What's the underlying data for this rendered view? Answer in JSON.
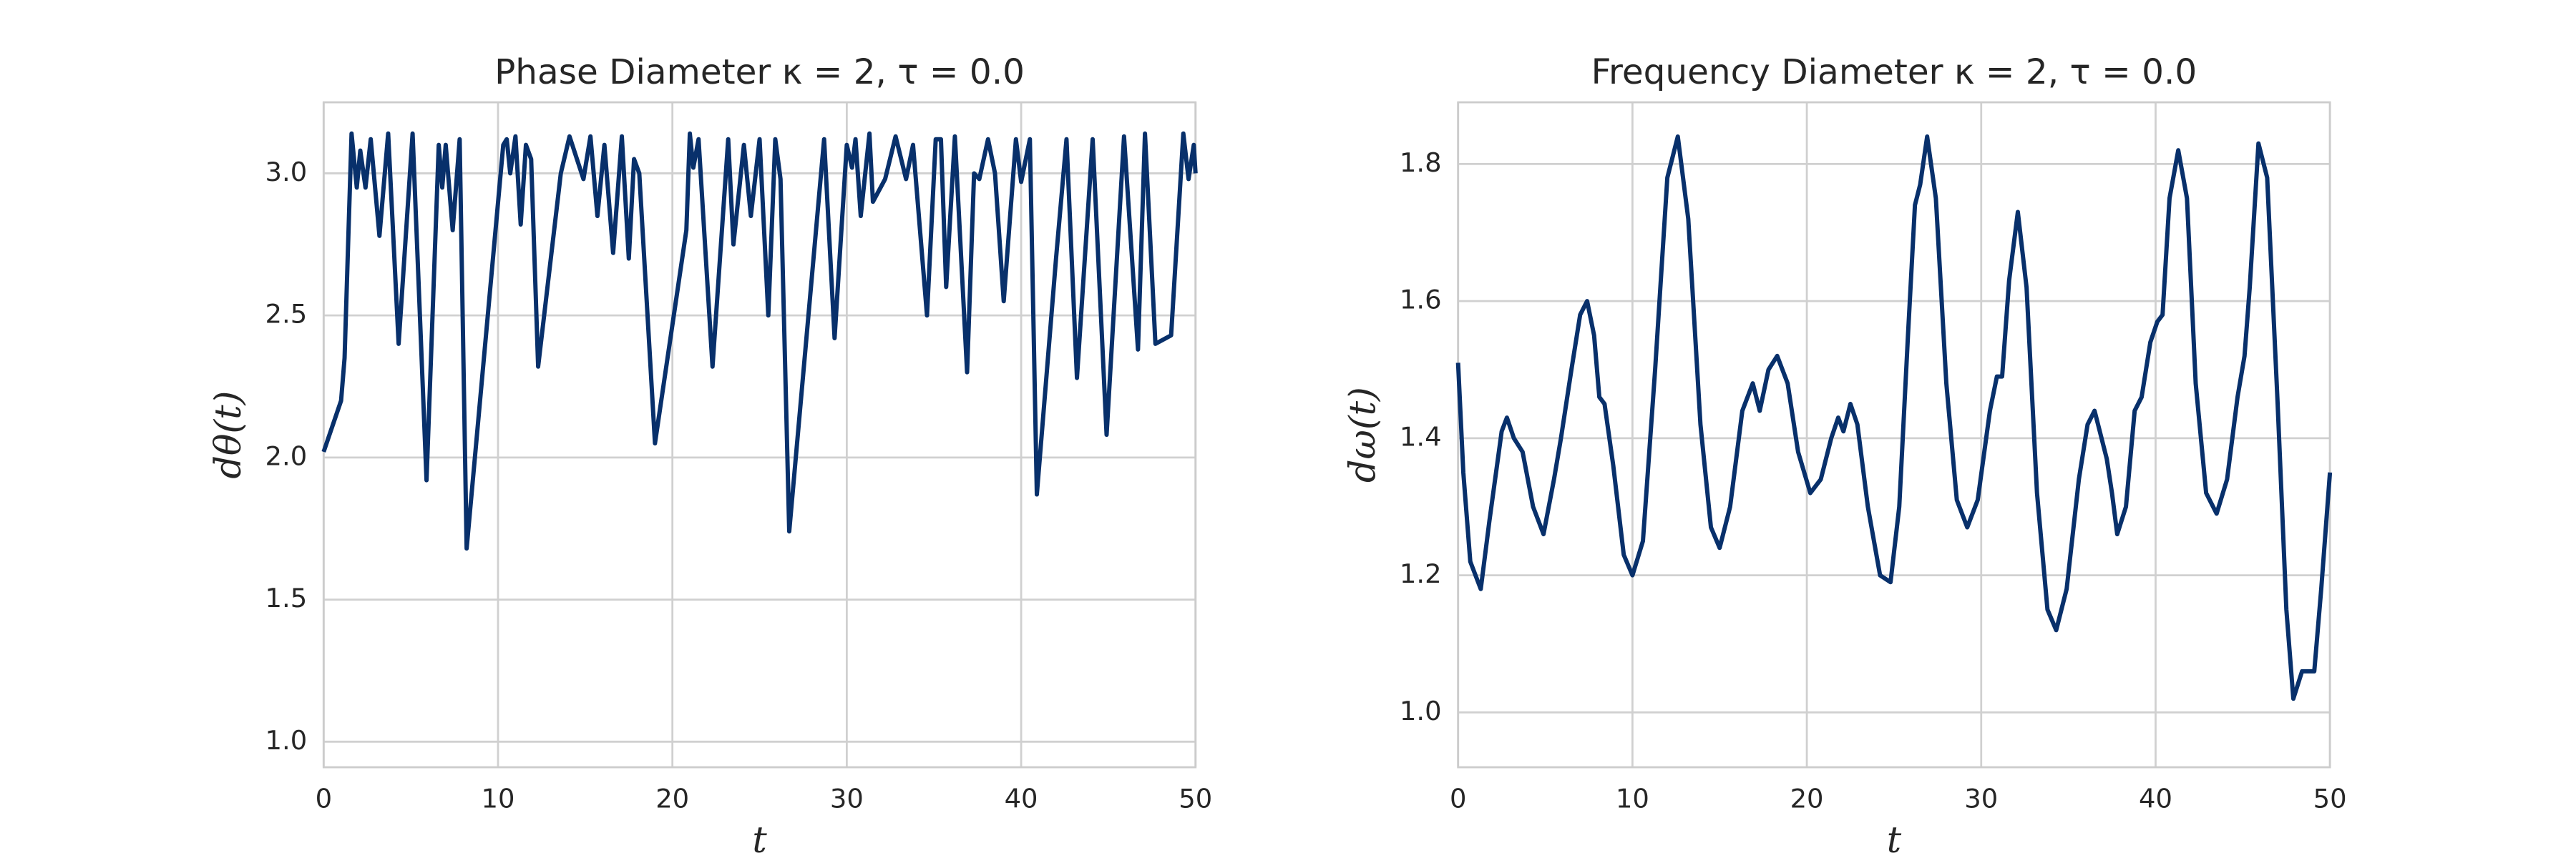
{
  "chart_data": [
    {
      "type": "line",
      "title": "Phase Diameter κ = 2, τ = 0.0",
      "x_label": "t",
      "y_label": "dθ(t)",
      "color": "#08306b",
      "grid": true,
      "xlim": [
        0,
        50
      ],
      "xticks": [
        0,
        10,
        20,
        30,
        40,
        50
      ],
      "ylim": [
        0.91,
        3.25
      ],
      "yticks": [
        {
          "value": 1,
          "label": "1.0"
        },
        1.5,
        {
          "value": 2,
          "label": "2.0"
        },
        2.5,
        {
          "value": 3,
          "label": "3.0"
        }
      ],
      "x": [
        0,
        1,
        1.2,
        1.6,
        1.9,
        2.1,
        2.4,
        2.7,
        3.2,
        3.7,
        4.3,
        5.1,
        5.9,
        6.6,
        6.8,
        7.0,
        7.4,
        7.8,
        8.2,
        10.3,
        10.5,
        10.7,
        11.0,
        11.3,
        11.6,
        11.9,
        12.3,
        13.6,
        14.1,
        14.9,
        15.3,
        15.7,
        16.1,
        16.6,
        17.1,
        17.5,
        17.8,
        18.1,
        19.0,
        20.8,
        21.0,
        21.2,
        21.5,
        22.3,
        23.2,
        23.5,
        24.1,
        24.5,
        25.0,
        25.5,
        25.9,
        26.2,
        26.7,
        28.7,
        29.3,
        30.0,
        30.3,
        30.5,
        30.8,
        31.3,
        31.5,
        32.2,
        32.8,
        33.4,
        33.8,
        34.6,
        35.1,
        35.4,
        35.7,
        36.2,
        36.9,
        37.3,
        37.6,
        38.1,
        38.5,
        39.0,
        39.7,
        40.0,
        40.5,
        40.9,
        42.0,
        42.6,
        43.2,
        44.1,
        44.9,
        45.9,
        46.7,
        47.1,
        47.7,
        48.6,
        49.3,
        49.6,
        49.9,
        50
      ],
      "values": [
        2.02,
        2.2,
        2.35,
        3.14,
        2.95,
        3.08,
        2.95,
        3.12,
        2.78,
        3.14,
        2.4,
        3.14,
        1.92,
        3.1,
        2.95,
        3.1,
        2.8,
        3.12,
        1.68,
        3.1,
        3.12,
        3.0,
        3.13,
        2.82,
        3.1,
        3.05,
        2.32,
        3.0,
        3.13,
        2.98,
        3.13,
        2.85,
        3.1,
        2.72,
        3.13,
        2.7,
        3.05,
        3.0,
        2.05,
        2.8,
        3.14,
        3.02,
        3.12,
        2.32,
        3.12,
        2.75,
        3.1,
        2.85,
        3.12,
        2.5,
        3.12,
        2.98,
        1.74,
        3.12,
        2.42,
        3.1,
        3.02,
        3.12,
        2.85,
        3.14,
        2.9,
        2.98,
        3.13,
        2.98,
        3.1,
        2.5,
        3.12,
        3.12,
        2.6,
        3.13,
        2.3,
        3.0,
        2.98,
        3.12,
        3.0,
        2.55,
        3.12,
        2.97,
        3.12,
        1.87,
        2.7,
        3.12,
        2.28,
        3.12,
        2.08,
        3.13,
        2.38,
        3.14,
        2.4,
        2.43,
        3.14,
        2.98,
        3.1,
        3.0
      ]
    },
    {
      "type": "line",
      "title": "Frequency Diameter κ = 2, τ = 0.0",
      "x_label": "t",
      "y_label": "dω(t)",
      "color": "#08306b",
      "grid": true,
      "xlim": [
        0,
        50
      ],
      "xticks": [
        0,
        10,
        20,
        30,
        40,
        50
      ],
      "ylim": [
        0.92,
        1.89
      ],
      "yticks": [
        {
          "value": 1,
          "label": "1.0"
        },
        1.2,
        1.4,
        1.6,
        1.8
      ],
      "x": [
        0,
        0.3,
        0.7,
        1.3,
        1.8,
        2.5,
        2.8,
        3.2,
        3.7,
        4.3,
        4.9,
        5.5,
        5.9,
        6.5,
        7.0,
        7.4,
        7.8,
        8.1,
        8.4,
        8.9,
        9.5,
        10.0,
        10.6,
        11.3,
        12.0,
        12.6,
        13.2,
        13.9,
        14.5,
        15.0,
        15.6,
        16.3,
        16.9,
        17.3,
        17.8,
        18.3,
        18.9,
        19.5,
        20.2,
        20.8,
        21.4,
        21.8,
        22.1,
        22.5,
        22.9,
        23.5,
        24.2,
        24.8,
        25.3,
        25.8,
        26.2,
        26.5,
        26.9,
        27.4,
        28.0,
        28.6,
        29.2,
        29.8,
        30.5,
        30.9,
        31.2,
        31.6,
        32.1,
        32.6,
        33.2,
        33.8,
        34.3,
        34.9,
        35.6,
        36.1,
        36.5,
        36.8,
        37.2,
        37.5,
        37.8,
        38.3,
        38.8,
        39.2,
        39.7,
        40.1,
        40.4,
        40.8,
        41.3,
        41.8,
        42.3,
        42.9,
        43.5,
        44.1,
        44.7,
        45.1,
        45.4,
        45.9,
        46.4,
        47.0,
        47.5,
        47.9,
        48.4,
        48.9,
        49.1,
        49.5,
        50
      ],
      "values": [
        1.51,
        1.35,
        1.22,
        1.18,
        1.28,
        1.41,
        1.43,
        1.4,
        1.38,
        1.3,
        1.26,
        1.34,
        1.4,
        1.5,
        1.58,
        1.6,
        1.55,
        1.46,
        1.45,
        1.36,
        1.23,
        1.2,
        1.25,
        1.5,
        1.78,
        1.84,
        1.72,
        1.42,
        1.27,
        1.24,
        1.3,
        1.44,
        1.48,
        1.44,
        1.5,
        1.52,
        1.48,
        1.38,
        1.32,
        1.34,
        1.4,
        1.43,
        1.41,
        1.45,
        1.42,
        1.3,
        1.2,
        1.19,
        1.3,
        1.55,
        1.74,
        1.77,
        1.84,
        1.75,
        1.48,
        1.31,
        1.27,
        1.31,
        1.44,
        1.49,
        1.49,
        1.63,
        1.73,
        1.62,
        1.32,
        1.15,
        1.12,
        1.18,
        1.34,
        1.42,
        1.44,
        1.41,
        1.37,
        1.32,
        1.26,
        1.3,
        1.44,
        1.46,
        1.54,
        1.57,
        1.58,
        1.75,
        1.82,
        1.75,
        1.48,
        1.32,
        1.29,
        1.34,
        1.46,
        1.52,
        1.62,
        1.83,
        1.78,
        1.45,
        1.15,
        1.02,
        1.06,
        1.06,
        1.06,
        1.18,
        1.35
      ]
    }
  ]
}
